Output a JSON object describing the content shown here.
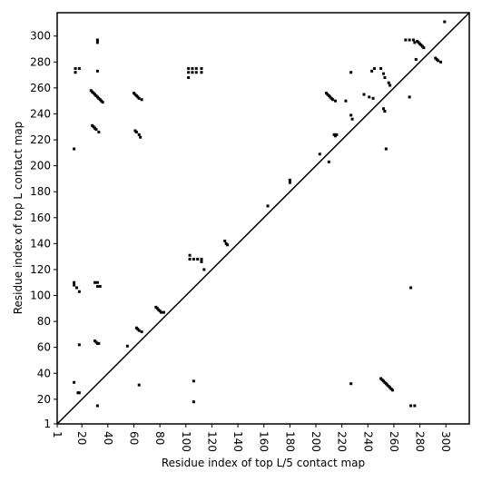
{
  "chart_data": {
    "type": "scatter",
    "x_label": "Residue index of top L/5 contact map",
    "y_label": "Residue index of top L contact map",
    "xlim": [
      1,
      318
    ],
    "ylim": [
      1,
      318
    ],
    "xticks": [
      1,
      20,
      40,
      60,
      80,
      100,
      120,
      140,
      160,
      180,
      200,
      220,
      240,
      260,
      280,
      300
    ],
    "yticks": [
      1,
      20,
      40,
      60,
      80,
      100,
      120,
      140,
      160,
      180,
      200,
      220,
      240,
      260,
      280,
      300
    ],
    "color": "#000000",
    "series": [
      {
        "name": "contacts",
        "x": [
          14,
          15,
          15,
          18,
          32,
          32,
          32,
          27,
          28,
          29,
          30,
          31,
          32,
          33,
          34,
          35,
          36,
          28,
          29,
          30,
          31,
          33,
          60,
          61,
          62,
          63,
          64,
          66,
          61,
          62,
          64,
          65,
          102,
          102,
          102,
          105,
          105,
          108,
          108,
          112,
          112,
          14,
          14,
          16,
          18,
          30,
          32,
          32,
          34,
          18,
          30,
          31,
          32,
          33,
          62,
          63,
          64,
          66,
          77,
          78,
          79,
          80,
          81,
          83,
          103,
          103,
          106,
          109,
          112,
          112,
          130,
          131,
          132,
          114,
          163,
          180,
          180,
          55,
          64,
          14,
          17,
          18,
          32,
          106,
          106,
          208,
          209,
          210,
          211,
          212,
          213,
          215,
          214,
          215,
          216,
          210,
          203,
          223,
          227,
          228,
          227,
          237,
          241,
          244,
          243,
          245,
          250,
          252,
          253,
          256,
          257,
          252,
          253,
          254,
          272,
          269,
          272,
          275,
          276,
          278,
          279,
          280,
          281,
          282,
          283,
          277,
          292,
          293,
          294,
          296,
          299,
          273,
          273,
          276,
          227,
          250,
          251,
          252,
          253,
          254,
          255,
          256,
          257,
          258,
          259
        ],
        "y": [
          213,
          272,
          275,
          275,
          295,
          297,
          273,
          258,
          257,
          256,
          255,
          254,
          253,
          252,
          251,
          250,
          249,
          231,
          230,
          229,
          228,
          226,
          256,
          255,
          254,
          253,
          252,
          251,
          227,
          226,
          224,
          222,
          268,
          272,
          275,
          272,
          275,
          272,
          275,
          272,
          275,
          108,
          110,
          106,
          103,
          110,
          110,
          107,
          107,
          62,
          65,
          64,
          63,
          63,
          75,
          74,
          73,
          72,
          91,
          90,
          89,
          88,
          87,
          87,
          131,
          128,
          128,
          128,
          126,
          128,
          142,
          140,
          139,
          120,
          169,
          189,
          187,
          61,
          31,
          33,
          25,
          25,
          15,
          34,
          18,
          256,
          255,
          254,
          253,
          252,
          251,
          250,
          224,
          223,
          224,
          203,
          209,
          250,
          239,
          236,
          272,
          255,
          253,
          252,
          273,
          275,
          275,
          271,
          268,
          264,
          262,
          244,
          242,
          213,
          253,
          297,
          297,
          297,
          295,
          296,
          295,
          294,
          293,
          292,
          291,
          282,
          283,
          282,
          281,
          280,
          311,
          106,
          15,
          15,
          32,
          36,
          35,
          34,
          33,
          32,
          31,
          30,
          29,
          28,
          27
        ]
      }
    ]
  }
}
